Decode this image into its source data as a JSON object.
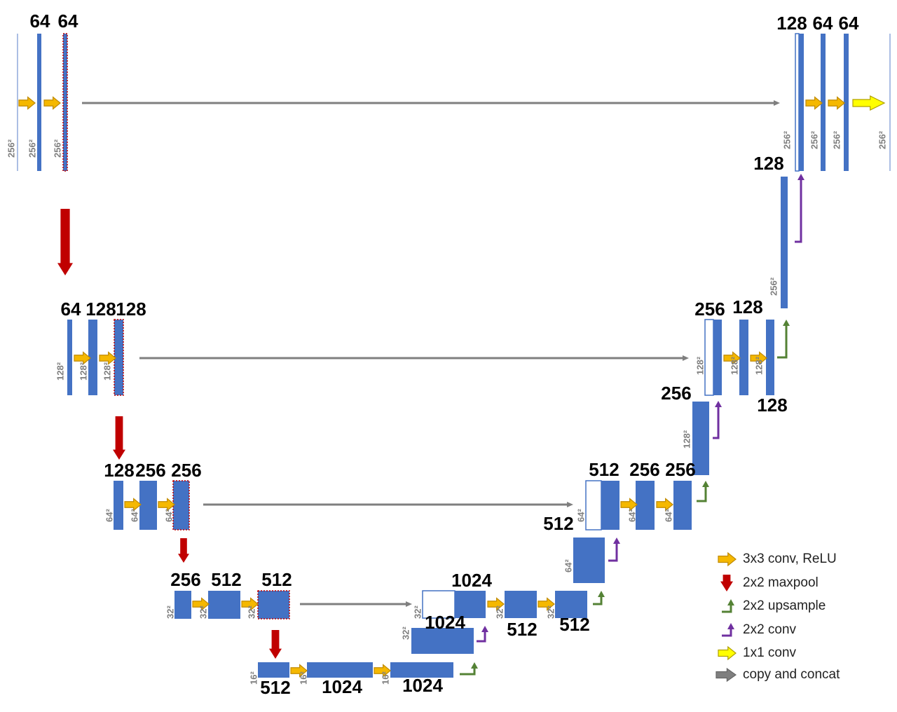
{
  "channel_labels": [
    "64",
    "64",
    "128",
    "64",
    "64",
    "128",
    "64",
    "128",
    "128",
    "256",
    "128",
    "128",
    "256",
    "128",
    "256",
    "256",
    "512",
    "256",
    "256",
    "512",
    "256",
    "512",
    "512",
    "1024",
    "1024",
    "512",
    "512",
    "512",
    "1024",
    "1024"
  ],
  "size_labels": [
    "256²",
    "256²",
    "256²",
    "256²",
    "256²",
    "256²",
    "256²",
    "256²",
    "128²",
    "128²",
    "128²",
    "128²",
    "128²",
    "128²",
    "128²",
    "64²",
    "64²",
    "64²",
    "64²",
    "64²",
    "64²",
    "64²",
    "32²",
    "32²",
    "32²",
    "32²",
    "32²",
    "32²",
    "32²",
    "16²",
    "16²",
    "16²"
  ],
  "legend": [
    {
      "label": "3x3 conv, ReLU"
    },
    {
      "label": "2x2 maxpool"
    },
    {
      "label": "2x2 upsample"
    },
    {
      "label": "2x2 conv"
    },
    {
      "label": "1x1 conv"
    },
    {
      "label": "copy and concat"
    }
  ]
}
